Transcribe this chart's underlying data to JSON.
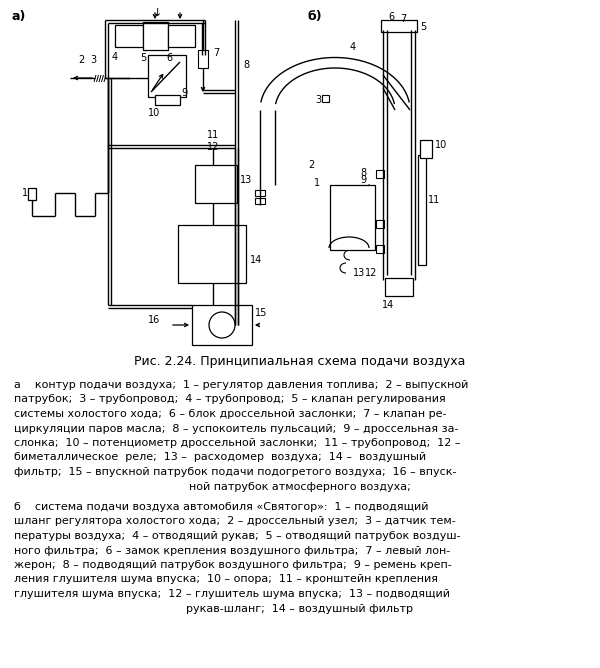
{
  "bg_color": "#ffffff",
  "fig_width": 6.0,
  "fig_height": 6.68,
  "caption": "Рис. 2.24. Принципиальная схема подачи воздуха",
  "text_a_lines": [
    "а    контур подачи воздуха;  1 – регулятор давления топлива;  2 – выпускной",
    "патрубок;  3 – трубопровод;  4 – трубопровод;  5 – клапан регулирования",
    "системы холостого хода;  6 – блок дроссельной заслонки;  7 – клапан ре-",
    "циркуляции паров масла;  8 – успокоитель пульсаций;  9 – дроссельная за-",
    "слонка;  10 – потенциометр дроссельной заслонки;  11 – трубопровод;  12 –",
    "биметаллическое  реле;  13 –  расходомер  воздуха;  14 –  воздушный",
    "фильтр;  15 – впускной патрубок подачи подогретого воздуха;  16 – впуск-",
    "ной патрубок атмосферного воздуха;"
  ],
  "text_b_lines": [
    "б    система подачи воздуха автомобиля «Святогор»:  1 – подводящий",
    "шланг регулятора холостого хода;  2 – дроссельный узел;  3 – датчик тем-",
    "пературы воздуха;  4 – отводящий рукав;  5 – отводящий патрубок воздуш-",
    "ного фильтра;  6 – замок крепления воздушного фильтра;  7 – левый лон-",
    "жерон;  8 – подводящий патрубок воздушного фильтра;  9 – ремень креп-",
    "ления глушителя шума впуска;  10 – опора;  11 – кронштейн крепления",
    "глушителя шума впуска;  12 – глушитель шума впуска;  13 – подводящий",
    "рукав-шланг;  14 – воздушный фильтр"
  ]
}
